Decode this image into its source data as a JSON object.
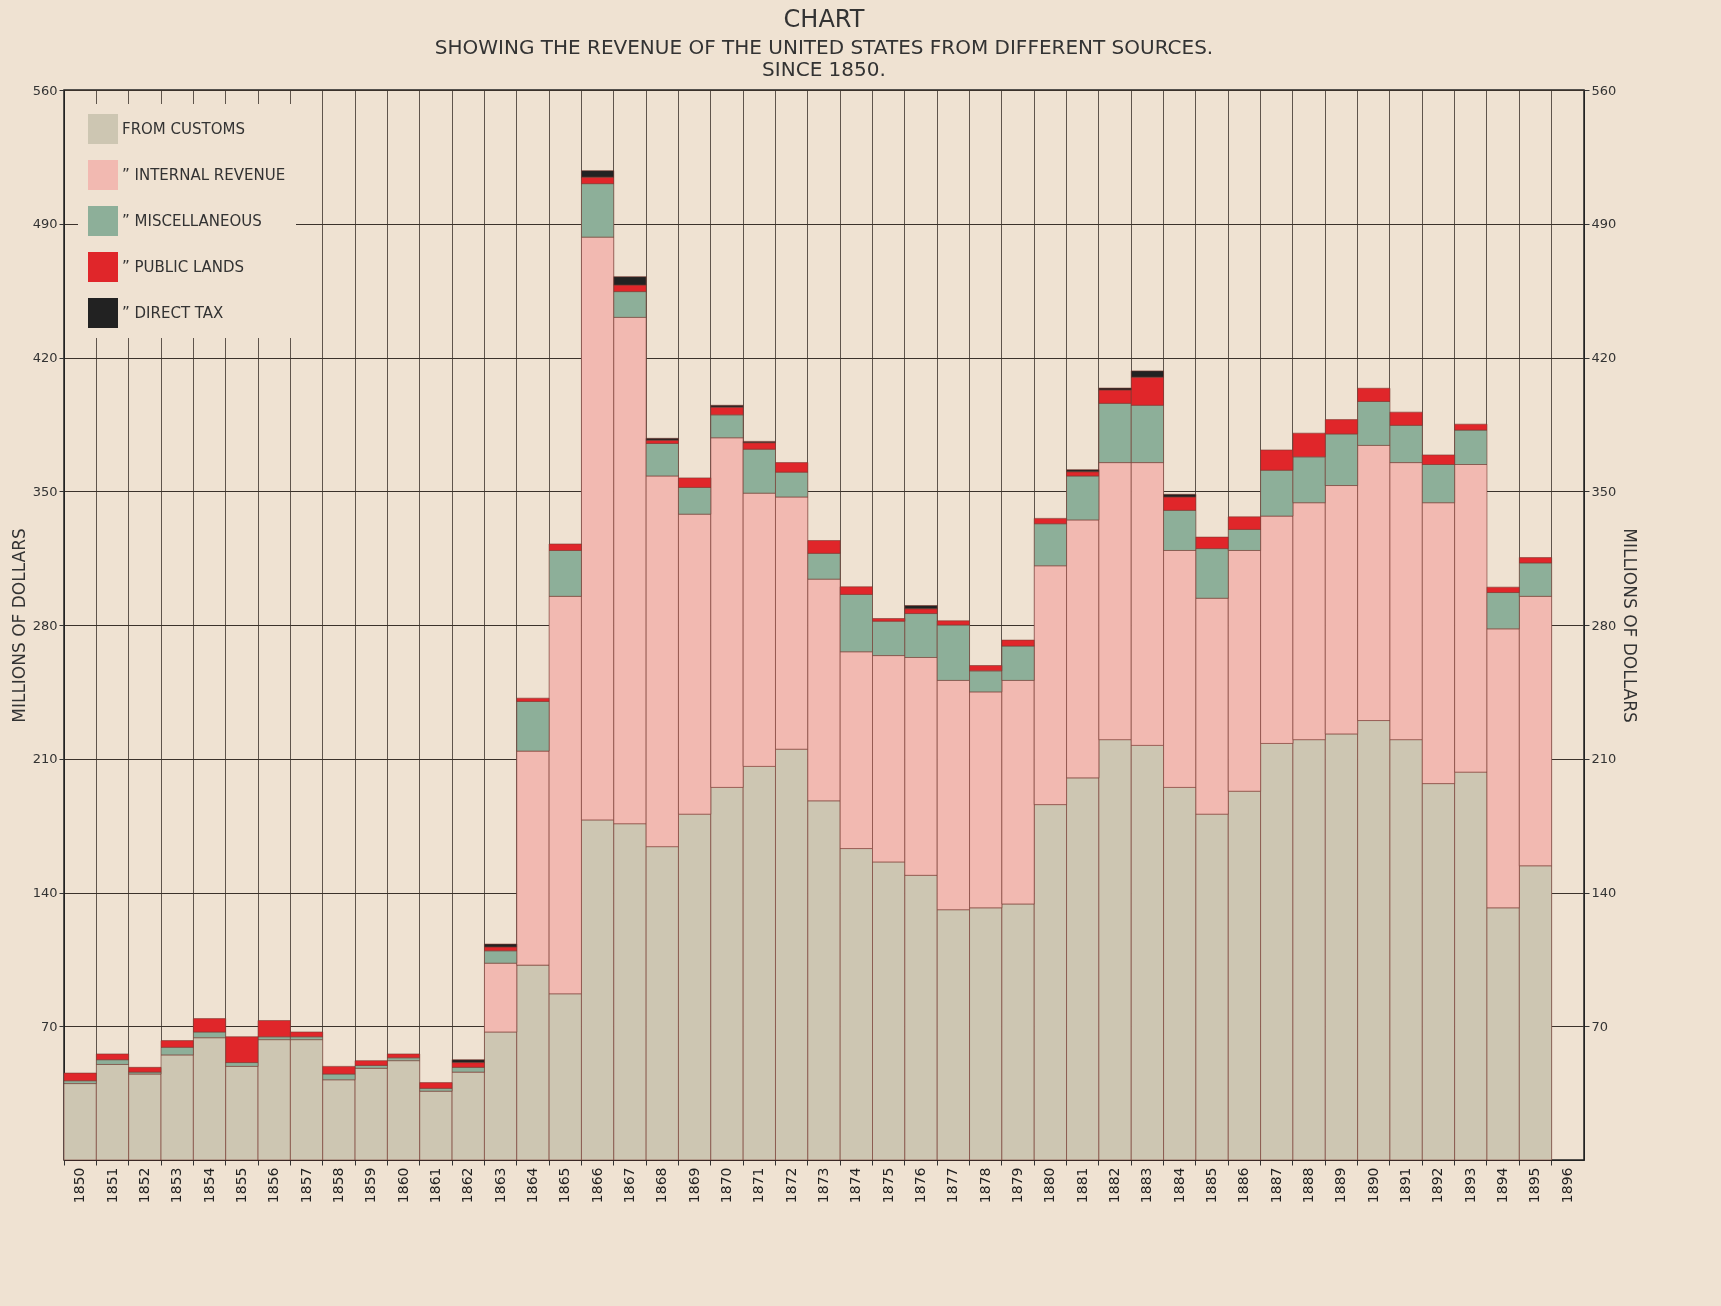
{
  "chart_data": {
    "type": "bar",
    "title": "CHART",
    "subtitle": "SHOWING THE REVENUE OF THE UNITED STATES FROM DIFFERENT SOURCES.",
    "annotations": [
      "SINCE 1850."
    ],
    "ylabel": "MILLIONS OF DOLLARS",
    "y2label": "MILLIONS OF DOLLARS",
    "stacked": true,
    "grid": true,
    "legend": "top left",
    "categories": [
      "1850",
      "1851",
      "1852",
      "1853",
      "1854",
      "1855",
      "1856",
      "1857",
      "1858",
      "1859",
      "1860",
      "1861",
      "1862",
      "1863",
      "1864",
      "1865",
      "1866",
      "1867",
      "1868",
      "1869",
      "1870",
      "1871",
      "1872",
      "1873",
      "1874",
      "1875",
      "1876",
      "1877",
      "1878",
      "1879",
      "1880",
      "1881",
      "1882",
      "1883",
      "1884",
      "1885",
      "1886",
      "1887",
      "1888",
      "1889",
      "1890",
      "1891",
      "1892",
      "1893",
      "1894",
      "1895",
      "1896"
    ],
    "ylim": [
      0,
      560
    ],
    "yticks": [
      70,
      140,
      210,
      280,
      350,
      420,
      490,
      560
    ],
    "y2lim": [
      0,
      560
    ],
    "y2ticks": [
      70,
      140,
      210,
      280,
      350,
      420,
      490,
      560
    ],
    "series": [
      {
        "name": "FROM CUSTOMS",
        "color": "#cdc6b2",
        "values": [
          40,
          50,
          45,
          55,
          64,
          49,
          63,
          63,
          42,
          48,
          52,
          36,
          46,
          67,
          102,
          87,
          178,
          176,
          164,
          181,
          195,
          206,
          215,
          188,
          163,
          156,
          149,
          131,
          132,
          134,
          186,
          200,
          220,
          217,
          195,
          181,
          193,
          218,
          220,
          223,
          230,
          220,
          197,
          203,
          132,
          154,
          null
        ]
      },
      {
        "name": "” INTERNAL REVENUE",
        "color": "#f2b9b1",
        "values": [
          null,
          null,
          null,
          null,
          null,
          null,
          null,
          null,
          null,
          null,
          null,
          null,
          null,
          36,
          112,
          208,
          305,
          265,
          194,
          157,
          183,
          143,
          132,
          116,
          103,
          108,
          114,
          120,
          113,
          117,
          125,
          135,
          145,
          148,
          124,
          113,
          126,
          119,
          124,
          130,
          144,
          145,
          147,
          161,
          146,
          141,
          null
        ]
      },
      {
        "name": "” MISCELLANEOUS",
        "color": "#8daf99",
        "values": [
          1.5,
          2.5,
          1,
          4,
          3,
          2,
          1.5,
          1.5,
          3,
          1.5,
          1.5,
          1.5,
          2.5,
          6.5,
          26,
          24,
          28,
          13.5,
          17,
          14,
          12,
          23,
          13,
          13.5,
          30,
          18,
          23,
          29,
          11,
          18,
          22,
          23,
          31,
          30,
          21,
          26,
          11,
          24,
          24,
          27,
          23,
          19.5,
          20,
          18,
          19,
          17.5,
          null
        ]
      },
      {
        "name": "” PUBLIC LANDS",
        "color": "#e0262a",
        "values": [
          4,
          3,
          2.5,
          3.5,
          7,
          13.5,
          8.5,
          2.5,
          4,
          2.5,
          2,
          3,
          2.5,
          2,
          1.7,
          3.4,
          3.4,
          3.4,
          1.7,
          5,
          4,
          3.4,
          5,
          6.7,
          4,
          1.4,
          2.5,
          2.2,
          2.8,
          3.1,
          2.8,
          2.2,
          7,
          14.7,
          7,
          6,
          6.6,
          10.6,
          12.4,
          7.5,
          6.9,
          6.9,
          5,
          3.1,
          2.8,
          2.8,
          null
        ]
      },
      {
        "name": "” DIRECT TAX",
        "color": "#222222",
        "values": [
          null,
          null,
          null,
          null,
          null,
          null,
          null,
          null,
          null,
          null,
          null,
          null,
          1.5,
          1.5,
          null,
          null,
          3.4,
          4.4,
          1,
          null,
          1,
          0.7,
          null,
          null,
          null,
          null,
          1.7,
          null,
          null,
          null,
          null,
          1.1,
          1,
          3.3,
          1.4,
          null,
          null,
          null,
          null,
          null,
          null,
          null,
          null,
          null,
          null,
          null,
          null
        ]
      }
    ]
  }
}
